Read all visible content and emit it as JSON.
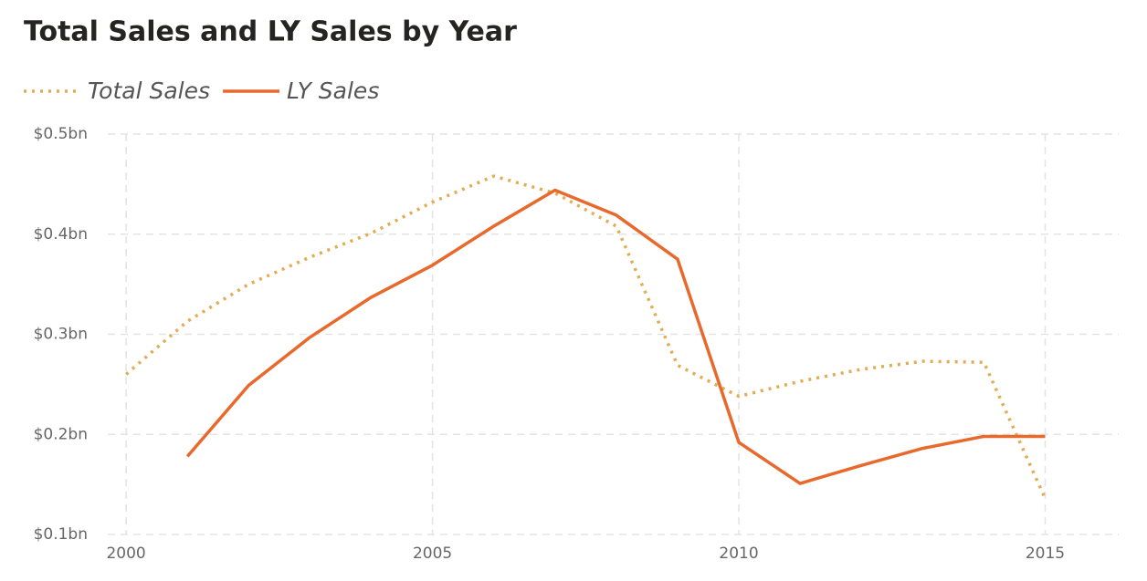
{
  "chart_data": {
    "type": "line",
    "title": "Total Sales and LY Sales by Year",
    "x": [
      2000,
      2001,
      2002,
      2003,
      2004,
      2005,
      2006,
      2007,
      2008,
      2009,
      2010,
      2011,
      2012,
      2013,
      2014,
      2015
    ],
    "series": [
      {
        "name": "Total Sales",
        "color": "#e0ad55",
        "dash": "dotted",
        "values": [
          0.26,
          0.313,
          0.35,
          0.377,
          0.401,
          0.432,
          0.458,
          0.441,
          0.408,
          0.269,
          0.238,
          0.253,
          0.265,
          0.273,
          0.272,
          0.136
        ]
      },
      {
        "name": "LY Sales",
        "color": "#e8692c",
        "dash": "solid",
        "values": [
          null,
          0.178,
          0.249,
          0.297,
          0.337,
          0.369,
          0.408,
          0.444,
          0.419,
          0.375,
          0.192,
          0.151,
          0.169,
          0.186,
          0.198,
          0.198
        ]
      }
    ],
    "xlim": [
      1999.7,
      2016.2
    ],
    "xticks": [
      2000,
      2005,
      2010,
      2015
    ],
    "ylim": [
      0.1,
      0.5
    ],
    "yticks": [
      {
        "value": 0.1,
        "label": "$0.1bn"
      },
      {
        "value": 0.2,
        "label": "$0.2bn"
      },
      {
        "value": 0.3,
        "label": "$0.3bn"
      },
      {
        "value": 0.4,
        "label": "$0.4bn"
      },
      {
        "value": 0.5,
        "label": "$0.5bn"
      }
    ],
    "grid": true,
    "legend": "top-left"
  }
}
